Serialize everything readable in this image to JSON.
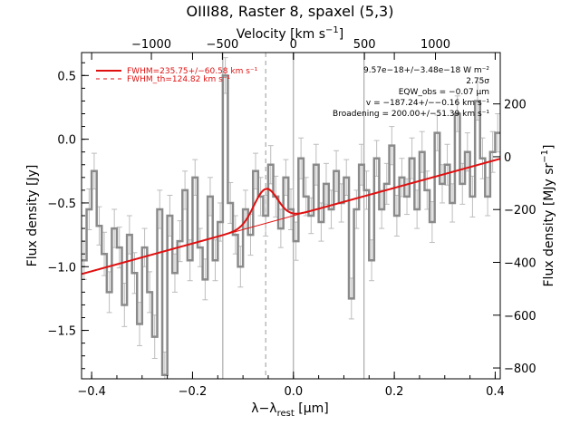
{
  "chart_data": {
    "type": "line",
    "title": "OIII88, Raster 8, spaxel (5,3)",
    "xlabel": "λ−λ_rest [μm]",
    "xlabel_parts": {
      "lambda": "λ",
      "minus": "−",
      "lambda2": "λ",
      "sub": "rest",
      "unit_open": " [",
      "mu": "μ",
      "unit_rest": "m]"
    },
    "ylabel": "Flux density [Jy]",
    "top_xlabel": "Velocity [km s⁻¹]",
    "top_xlabel_parts": {
      "main": "Velocity [km s",
      "sup": "−1",
      "close": "]"
    },
    "right_ylabel": "Flux density [MJy sr⁻¹]",
    "right_ylabel_parts": {
      "main": "Flux density [MJy sr",
      "sup": "−1",
      "close": "]"
    },
    "xlim": [
      -0.42,
      0.41
    ],
    "ylim": [
      -1.88,
      0.68
    ],
    "x_ticks": [
      -0.4,
      -0.2,
      0.0,
      0.2,
      0.4
    ],
    "x_tick_labels": [
      "−0.4",
      "−0.2",
      "0.0",
      "0.2",
      "0.4"
    ],
    "y_ticks": [
      -1.5,
      -1.0,
      -0.5,
      0.0,
      0.5
    ],
    "y_tick_labels": [
      "−1.5",
      "−1.0",
      "−0.5",
      "0.0",
      "0.5"
    ],
    "top_ticks_km_s": [
      -1000,
      -500,
      0,
      500,
      1000
    ],
    "top_tick_labels": [
      "−1000",
      "−500",
      "0",
      "500",
      "1000"
    ],
    "right_ticks": [
      200,
      0,
      -200,
      -400,
      -600,
      -800
    ],
    "right_tick_labels": [
      "200",
      "0",
      "−200",
      "−400",
      "−600",
      "−800"
    ],
    "right_axis_values_at": {
      "y_at_plus_200": 0.277,
      "y_at_minus_800": -1.795
    },
    "velocity_to_x_um_per_kms": 0.0002816,
    "vertical_lines_x": [
      -0.14,
      0.0,
      0.14
    ],
    "dashed_line_x": -0.055,
    "continuum": {
      "slope": 1.09,
      "intercept": -0.6
    },
    "gaussian": {
      "center": -0.055,
      "amplitude": 0.27,
      "sigma": 0.0235
    },
    "spectrum": {
      "x": [
        -0.415,
        -0.405,
        -0.395,
        -0.385,
        -0.375,
        -0.365,
        -0.355,
        -0.345,
        -0.335,
        -0.325,
        -0.315,
        -0.305,
        -0.295,
        -0.285,
        -0.275,
        -0.265,
        -0.255,
        -0.245,
        -0.235,
        -0.225,
        -0.215,
        -0.205,
        -0.195,
        -0.185,
        -0.175,
        -0.165,
        -0.155,
        -0.145,
        -0.135,
        -0.125,
        -0.115,
        -0.105,
        -0.095,
        -0.085,
        -0.075,
        -0.065,
        -0.055,
        -0.045,
        -0.035,
        -0.025,
        -0.015,
        -0.005,
        0.005,
        0.015,
        0.025,
        0.035,
        0.045,
        0.055,
        0.065,
        0.075,
        0.085,
        0.095,
        0.105,
        0.115,
        0.125,
        0.135,
        0.145,
        0.155,
        0.165,
        0.175,
        0.185,
        0.195,
        0.205,
        0.215,
        0.225,
        0.235,
        0.245,
        0.255,
        0.265,
        0.275,
        0.285,
        0.295,
        0.305,
        0.315,
        0.325,
        0.335,
        0.345,
        0.355,
        0.365,
        0.375,
        0.385,
        0.395,
        0.405
      ],
      "y": [
        -0.95,
        -0.55,
        -0.25,
        -0.68,
        -0.9,
        -1.2,
        -0.7,
        -0.85,
        -1.3,
        -0.75,
        -1.05,
        -1.45,
        -0.85,
        -1.2,
        -1.55,
        -0.55,
        -1.85,
        -0.6,
        -1.05,
        -0.8,
        -0.4,
        -0.95,
        -0.3,
        -0.85,
        -1.1,
        -0.45,
        -0.95,
        -0.65,
        0.5,
        -0.5,
        -0.75,
        -1.0,
        -0.55,
        -0.75,
        -0.25,
        -0.45,
        -0.6,
        -0.2,
        -0.45,
        -0.7,
        -0.3,
        -0.55,
        -0.8,
        -0.15,
        -0.45,
        -0.6,
        -0.2,
        -0.65,
        -0.35,
        -0.55,
        -0.25,
        -0.5,
        -0.3,
        -1.25,
        -0.55,
        -0.2,
        -0.4,
        -0.95,
        -0.15,
        -0.55,
        -0.35,
        -0.05,
        -0.6,
        -0.3,
        -0.45,
        -0.15,
        -0.55,
        -0.1,
        -0.4,
        -0.65,
        0.05,
        -0.35,
        -0.2,
        -0.5,
        0.2,
        -0.35,
        -0.1,
        -0.45,
        0.3,
        -0.15,
        -0.45,
        -0.1,
        0.05
      ],
      "err": [
        0.15,
        0.16,
        0.14,
        0.15,
        0.17,
        0.16,
        0.15,
        0.16,
        0.17,
        0.15,
        0.16,
        0.17,
        0.15,
        0.16,
        0.17,
        0.15,
        0.18,
        0.16,
        0.15,
        0.16,
        0.15,
        0.16,
        0.14,
        0.15,
        0.16,
        0.15,
        0.16,
        0.15,
        0.14,
        0.16,
        0.15,
        0.16,
        0.15,
        0.16,
        0.14,
        0.15,
        0.16,
        0.15,
        0.16,
        0.15,
        0.14,
        0.16,
        0.15,
        0.16,
        0.15,
        0.14,
        0.16,
        0.15,
        0.16,
        0.15,
        0.16,
        0.15,
        0.14,
        0.16,
        0.15,
        0.16,
        0.15,
        0.16,
        0.14,
        0.15,
        0.16,
        0.15,
        0.16,
        0.15,
        0.14,
        0.16,
        0.15,
        0.16,
        0.15,
        0.16,
        0.14,
        0.15,
        0.16,
        0.15,
        0.14,
        0.16,
        0.15,
        0.16,
        0.15,
        0.16,
        0.15,
        0.16,
        0.15
      ]
    },
    "legend": {
      "placement": "top-left",
      "entries": [
        {
          "label": "FWHM=235.75+/−60.58 km s⁻¹",
          "style": "solid"
        },
        {
          "label": "FWHM_th=124.82 km s⁻¹",
          "style": "dashed"
        }
      ]
    },
    "annotations": [
      "9.57e−18+/−3.48e−18 W m⁻²",
      "2.75σ",
      "EQW_obs = −0.07 μm",
      "v = −187.24+/−−0.16 km s⁻¹",
      "Broadening = 200.00+/−51.39 km s⁻¹"
    ],
    "colors": {
      "spectrum": "#8a8a8a",
      "errorbar": "#bdbdbd",
      "fit": "#e01010",
      "gaussian_component": "#e07020",
      "vline": "#999999"
    }
  }
}
